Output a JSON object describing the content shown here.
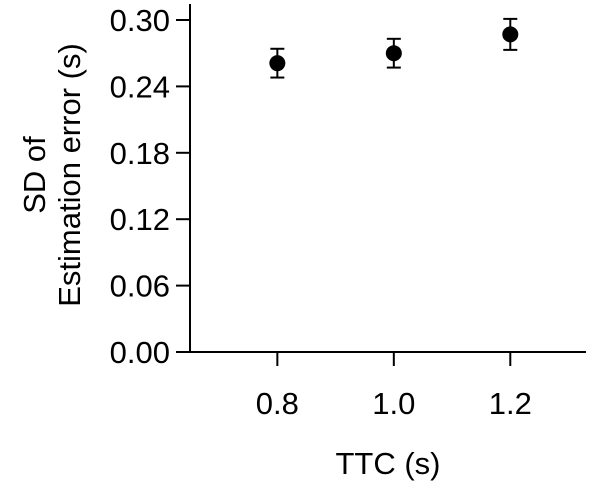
{
  "chart_data": {
    "type": "scatter",
    "x": [
      0.8,
      1.0,
      1.2
    ],
    "y": [
      0.261,
      0.27,
      0.287
    ],
    "error": [
      0.013,
      0.013,
      0.014
    ],
    "xlabel": "TTC (s)",
    "ylabel_lines": [
      "SD of",
      "Estimation error (s)"
    ],
    "xticks": [
      "0.8",
      "1.0",
      "1.2"
    ],
    "yticks": [
      "0.00",
      "0.06",
      "0.12",
      "0.18",
      "0.24",
      "0.30"
    ],
    "ylim": [
      0,
      0.3
    ],
    "xlim": [
      0.65,
      1.33
    ],
    "grid": false,
    "legend": "none",
    "marker_color": "#000000"
  }
}
